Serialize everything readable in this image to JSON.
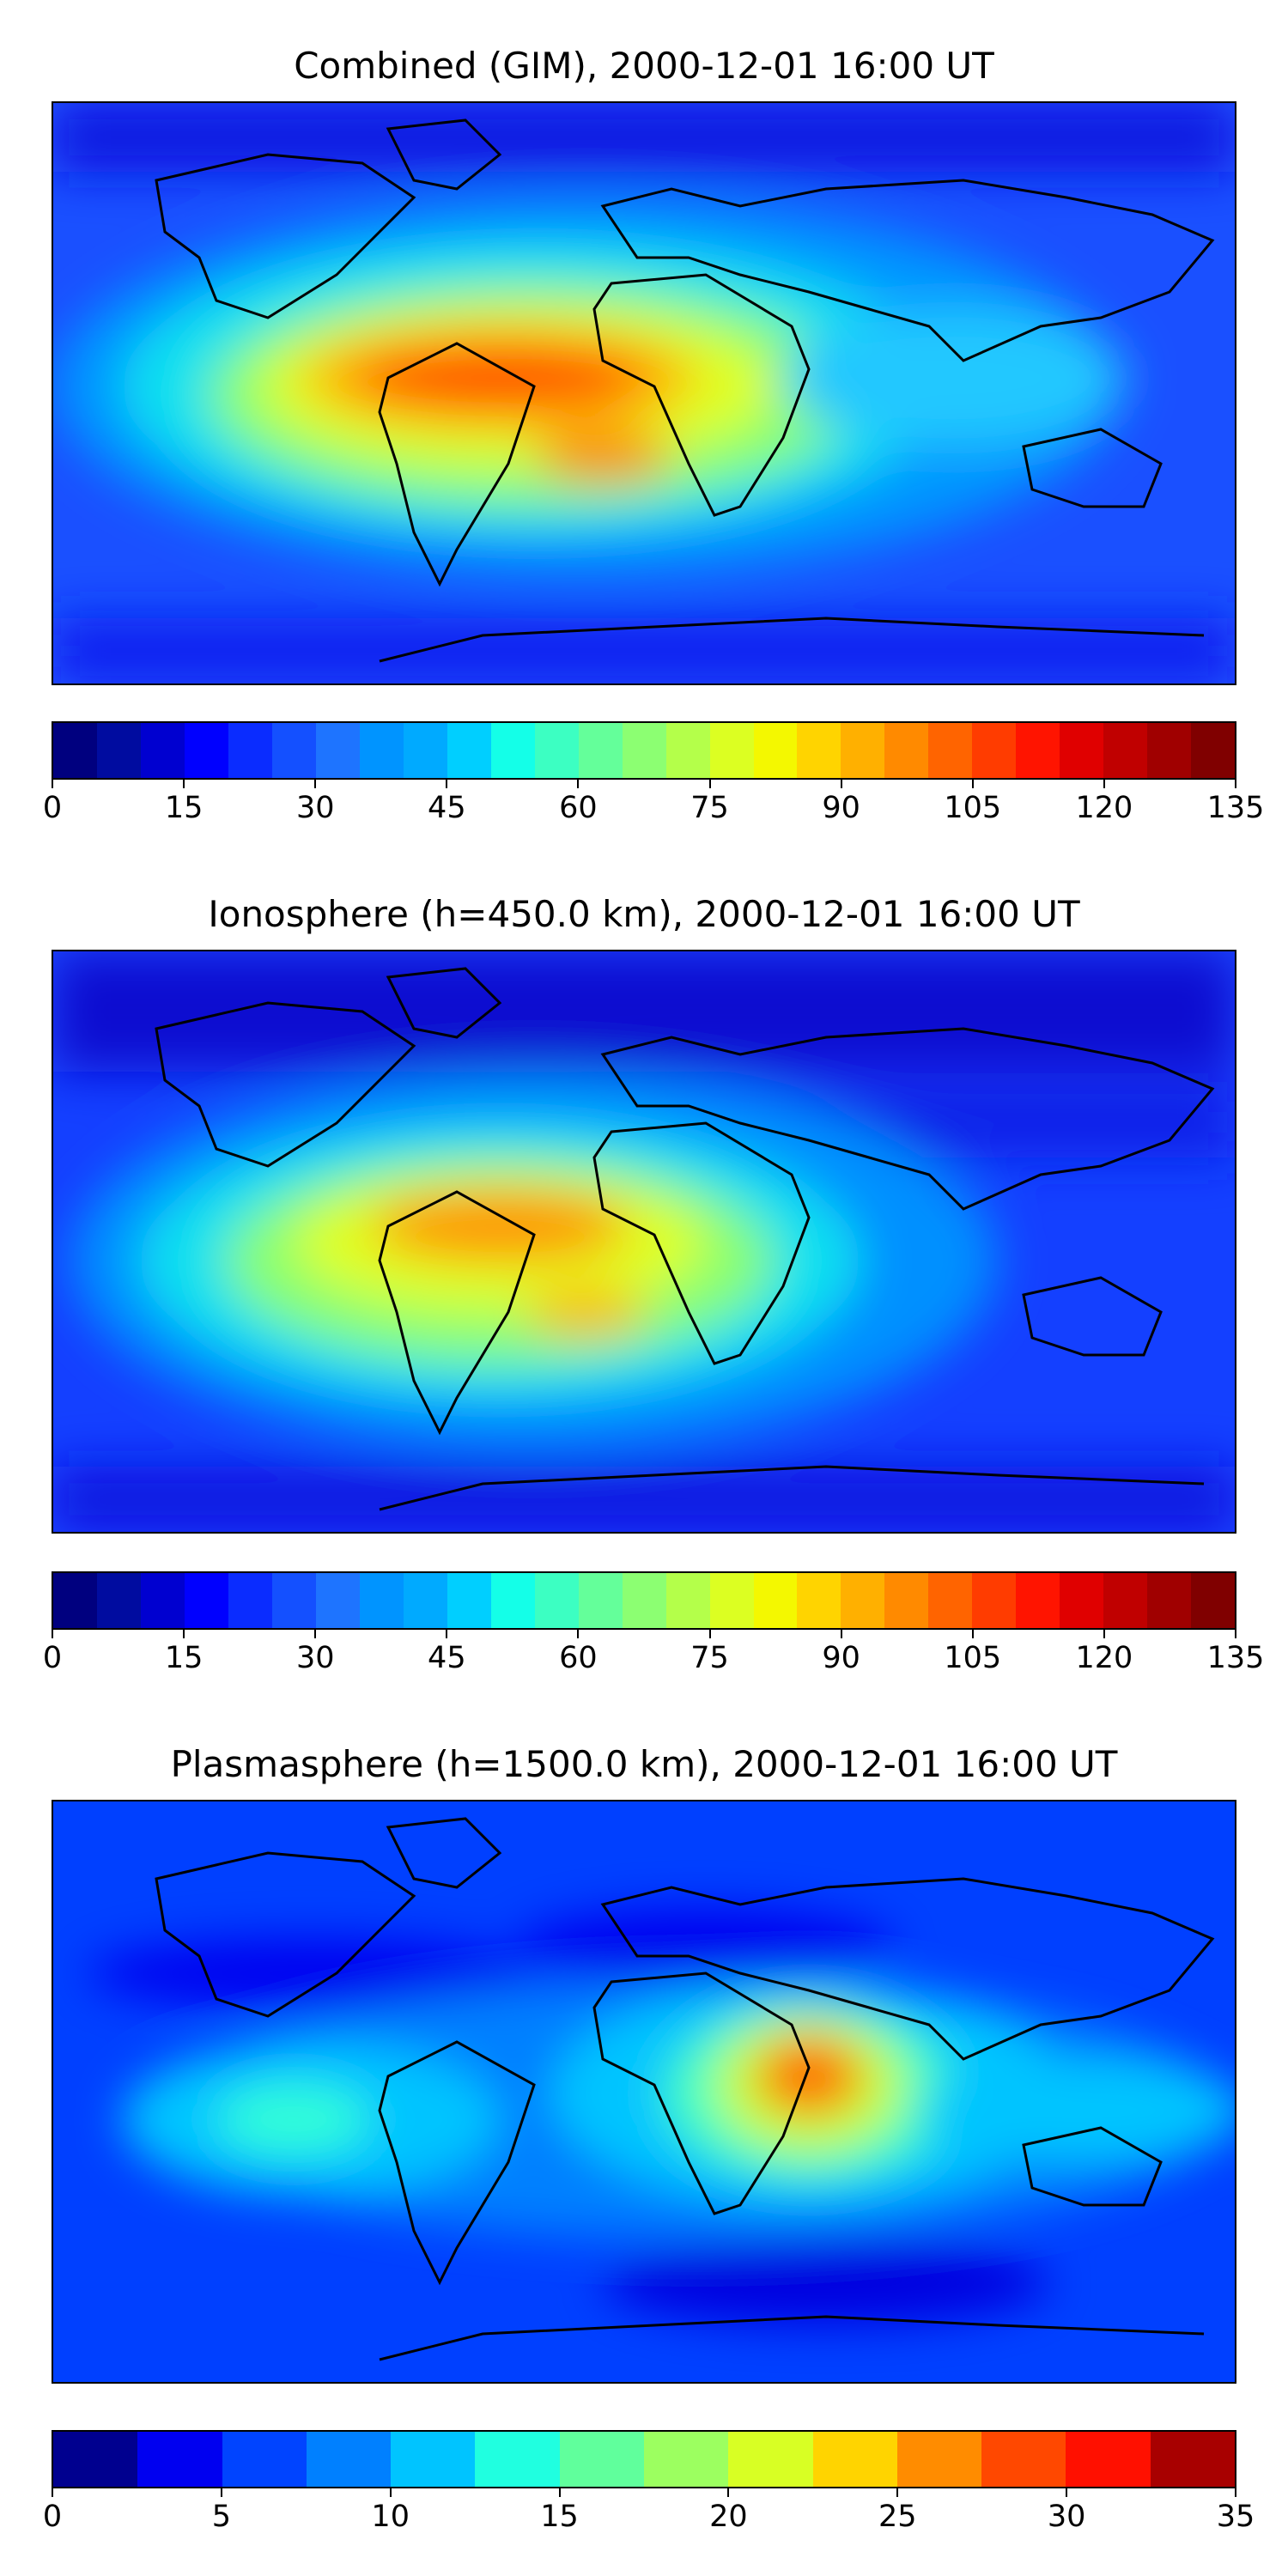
{
  "panels": [
    {
      "title": "Combined (GIM), 2000-12-01 16:00 UT",
      "levels": 27,
      "max": 135,
      "ticks": [
        "0",
        "15",
        "30",
        "45",
        "60",
        "75",
        "90",
        "105",
        "120",
        "135"
      ],
      "colors": [
        "#00007f",
        "#000ca0",
        "#0000d0",
        "#0000ff",
        "#0a2cff",
        "#1450ff",
        "#1e74ff",
        "#0094ff",
        "#00aaff",
        "#00cfff",
        "#14ffe8",
        "#3cffc2",
        "#64ff9a",
        "#8cff72",
        "#b4ff4a",
        "#dcff22",
        "#f4f800",
        "#ffd400",
        "#ffb000",
        "#ff8a00",
        "#ff6400",
        "#ff3c00",
        "#ff1400",
        "#e00000",
        "#c00000",
        "#a00000",
        "#800000"
      ]
    },
    {
      "title": "Ionosphere  (h=450.0 km), 2000-12-01 16:00 UT",
      "levels": 27,
      "max": 135,
      "ticks": [
        "0",
        "15",
        "30",
        "45",
        "60",
        "75",
        "90",
        "105",
        "120",
        "135"
      ],
      "colors": [
        "#00007f",
        "#000ca0",
        "#0000d0",
        "#0000ff",
        "#0a2cff",
        "#1450ff",
        "#1e74ff",
        "#0094ff",
        "#00aaff",
        "#00cfff",
        "#14ffe8",
        "#3cffc2",
        "#64ff9a",
        "#8cff72",
        "#b4ff4a",
        "#dcff22",
        "#f4f800",
        "#ffd400",
        "#ffb000",
        "#ff8a00",
        "#ff6400",
        "#ff3c00",
        "#ff1400",
        "#e00000",
        "#c00000",
        "#a00000",
        "#800000"
      ]
    },
    {
      "title": "Plasmasphere (h=1500.0 km), 2000-12-01 16:00 UT",
      "levels": 14,
      "max": 35,
      "ticks": [
        "0",
        "5",
        "10",
        "15",
        "20",
        "25",
        "30",
        "35"
      ],
      "colors": [
        "#00008f",
        "#0000f0",
        "#0044ff",
        "#0080ff",
        "#00c4ff",
        "#20ffe0",
        "#60ff9c",
        "#9cff60",
        "#d8ff24",
        "#ffd400",
        "#ff8c00",
        "#ff4800",
        "#ff1000",
        "#a80000"
      ]
    }
  ]
}
